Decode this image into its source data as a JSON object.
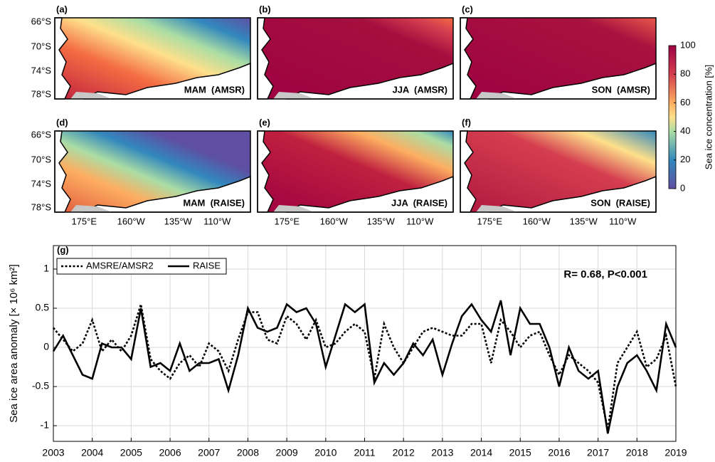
{
  "maps": {
    "panels": [
      {
        "label": "(a)",
        "title": "MAM  (AMSR)"
      },
      {
        "label": "(b)",
        "title": "JJA  (AMSR)"
      },
      {
        "label": "(c)",
        "title": "SON  (AMSR)"
      },
      {
        "label": "(d)",
        "title": "MAM  (RAISE)"
      },
      {
        "label": "(e)",
        "title": "JJA  (RAISE)"
      },
      {
        "label": "(f)",
        "title": "SON  (RAISE)"
      }
    ],
    "lat_ticks": [
      "66°S",
      "70°S",
      "74°S",
      "78°S"
    ],
    "lon_ticks": [
      "175°E",
      "160°W",
      "135°W",
      "110°W"
    ],
    "colorbar": {
      "label": "Sea ice concentration [%]",
      "lim": [
        0,
        100
      ],
      "ticks": [
        0,
        20,
        40,
        60,
        80,
        100
      ]
    }
  },
  "chart_data": {
    "type": "line",
    "panel_label": "(g)",
    "ylabel": "Sea ice area anomaly [× 10⁶ km²]",
    "annotation": "R= 0.68, P<0.001",
    "legend": "upper left",
    "grid": true,
    "xlim": [
      2003,
      2019
    ],
    "xticks": [
      2003,
      2004,
      2005,
      2006,
      2007,
      2008,
      2009,
      2010,
      2011,
      2012,
      2013,
      2014,
      2015,
      2016,
      2017,
      2018,
      2019
    ],
    "ylim": [
      -1.2,
      1.3
    ],
    "yticks": [
      -1,
      -0.5,
      0,
      0.5,
      1
    ],
    "x": [
      2003,
      2003.25,
      2003.5,
      2003.75,
      2004,
      2004.25,
      2004.5,
      2004.75,
      2005,
      2005.25,
      2005.5,
      2005.75,
      2006,
      2006.25,
      2006.5,
      2006.75,
      2007,
      2007.25,
      2007.5,
      2007.75,
      2008,
      2008.25,
      2008.5,
      2008.75,
      2009,
      2009.25,
      2009.5,
      2009.75,
      2010,
      2010.25,
      2010.5,
      2010.75,
      2011,
      2011.25,
      2011.5,
      2011.75,
      2012,
      2012.25,
      2012.5,
      2012.75,
      2013,
      2013.25,
      2013.5,
      2013.75,
      2014,
      2014.25,
      2014.5,
      2014.75,
      2015,
      2015.25,
      2015.5,
      2015.75,
      2016,
      2016.25,
      2016.5,
      2016.75,
      2017,
      2017.25,
      2017.5,
      2017.75,
      2018,
      2018.25,
      2018.5,
      2018.75,
      2019
    ],
    "series": [
      {
        "name": "AMSRE/AMSR2",
        "color": "#000000",
        "style": "dotted",
        "values": [
          0.25,
          0.1,
          -0.05,
          0.05,
          0.35,
          -0.05,
          0.1,
          -0.05,
          0.15,
          0.55,
          -0.15,
          -0.3,
          -0.4,
          -0.2,
          -0.1,
          -0.25,
          0.05,
          -0.05,
          -0.3,
          0.1,
          0.45,
          0.45,
          0.1,
          0.05,
          0.4,
          0.3,
          0.1,
          0.35,
          0.0,
          0.05,
          0.2,
          0.3,
          0.2,
          -0.4,
          0.3,
          0.0,
          -0.2,
          0.0,
          0.2,
          0.25,
          0.2,
          0.15,
          0.15,
          0.3,
          0.3,
          -0.2,
          0.35,
          0.2,
          0.0,
          0.15,
          0.2,
          -0.1,
          -0.35,
          -0.1,
          -0.2,
          -0.3,
          -0.45,
          -1.05,
          -0.2,
          0.0,
          0.2,
          -0.25,
          -0.15,
          0.15,
          -0.5
        ]
      },
      {
        "name": "RAISE",
        "color": "#000000",
        "style": "solid",
        "values": [
          -0.05,
          0.15,
          -0.1,
          -0.35,
          -0.4,
          0.05,
          0.0,
          0.0,
          -0.15,
          0.5,
          -0.25,
          -0.2,
          -0.3,
          0.05,
          -0.3,
          -0.2,
          -0.2,
          -0.15,
          -0.55,
          -0.1,
          0.5,
          0.25,
          0.2,
          0.25,
          0.55,
          0.45,
          0.5,
          0.3,
          -0.25,
          0.15,
          0.55,
          0.45,
          0.55,
          -0.45,
          -0.2,
          -0.35,
          -0.2,
          0.05,
          -0.1,
          0.1,
          -0.35,
          0.05,
          0.4,
          0.55,
          0.35,
          0.2,
          0.6,
          -0.1,
          0.5,
          0.3,
          0.3,
          0.0,
          -0.5,
          0.0,
          -0.3,
          -0.4,
          -0.3,
          -1.1,
          -0.5,
          -0.2,
          -0.1,
          -0.3,
          -0.55,
          0.3,
          0.0
        ]
      }
    ]
  }
}
